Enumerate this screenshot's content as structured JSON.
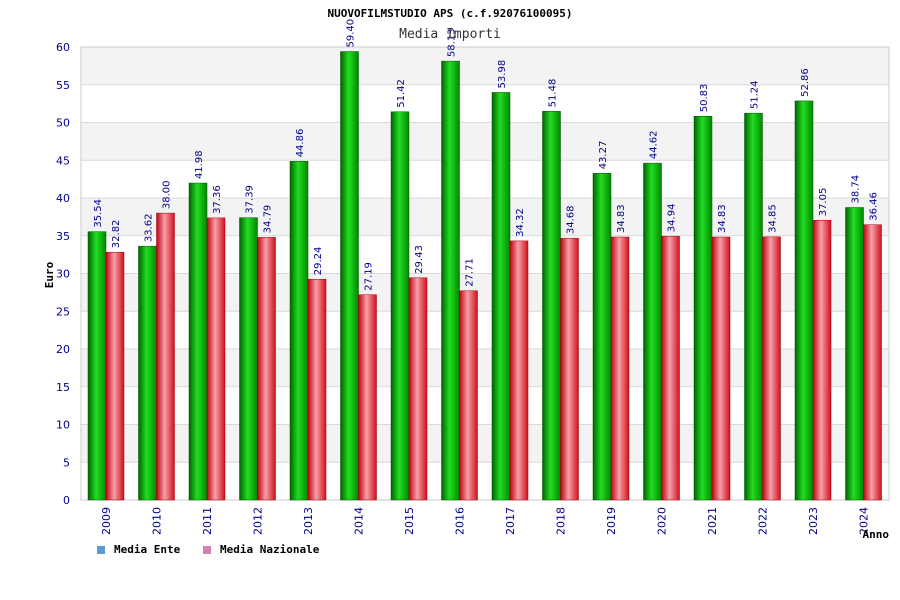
{
  "chart_data": {
    "type": "bar",
    "title": "NUOVOFILMSTUDIO APS (c.f.92076100095)",
    "subtitle": "Media Importi",
    "xlabel": "Anno",
    "ylabel": "Euro",
    "ylim": [
      0,
      60
    ],
    "ytick_step": 5,
    "grid": true,
    "legend_position": "bottom-left",
    "categories": [
      "2009",
      "2010",
      "2011",
      "2012",
      "2013",
      "2014",
      "2015",
      "2016",
      "2017",
      "2018",
      "2019",
      "2020",
      "2021",
      "2022",
      "2023",
      "2024"
    ],
    "series": [
      {
        "name": "Media Ente",
        "color": "#00b300",
        "legend_color": "#5b9bd5",
        "values": [
          35.54,
          33.62,
          41.98,
          37.39,
          44.86,
          59.4,
          51.42,
          58.13,
          53.98,
          51.48,
          43.27,
          44.62,
          50.83,
          51.24,
          52.86,
          38.74
        ],
        "labels": [
          "35.54",
          "33.62",
          "41.98",
          "37.39",
          "44.86",
          "59.40",
          "51.42",
          "58.13",
          "53.98",
          "51.48",
          "43.27",
          "44.62",
          "50.83",
          "51.24",
          "52.86",
          "38.74"
        ]
      },
      {
        "name": "Media Nazionale",
        "color": "#e8202e",
        "legend_color": "#d77fb8",
        "values": [
          32.82,
          38.0,
          37.36,
          34.79,
          29.24,
          27.19,
          29.43,
          27.71,
          34.32,
          34.68,
          34.83,
          34.94,
          34.83,
          34.85,
          37.05,
          36.46
        ],
        "labels": [
          "32.82",
          "38.00",
          "37.36",
          "34.79",
          "29.24",
          "27.19",
          "29.43",
          "27.71",
          "34.32",
          "34.68",
          "34.83",
          "34.94",
          "34.83",
          "34.85",
          "37.05",
          "36.46"
        ]
      }
    ]
  }
}
